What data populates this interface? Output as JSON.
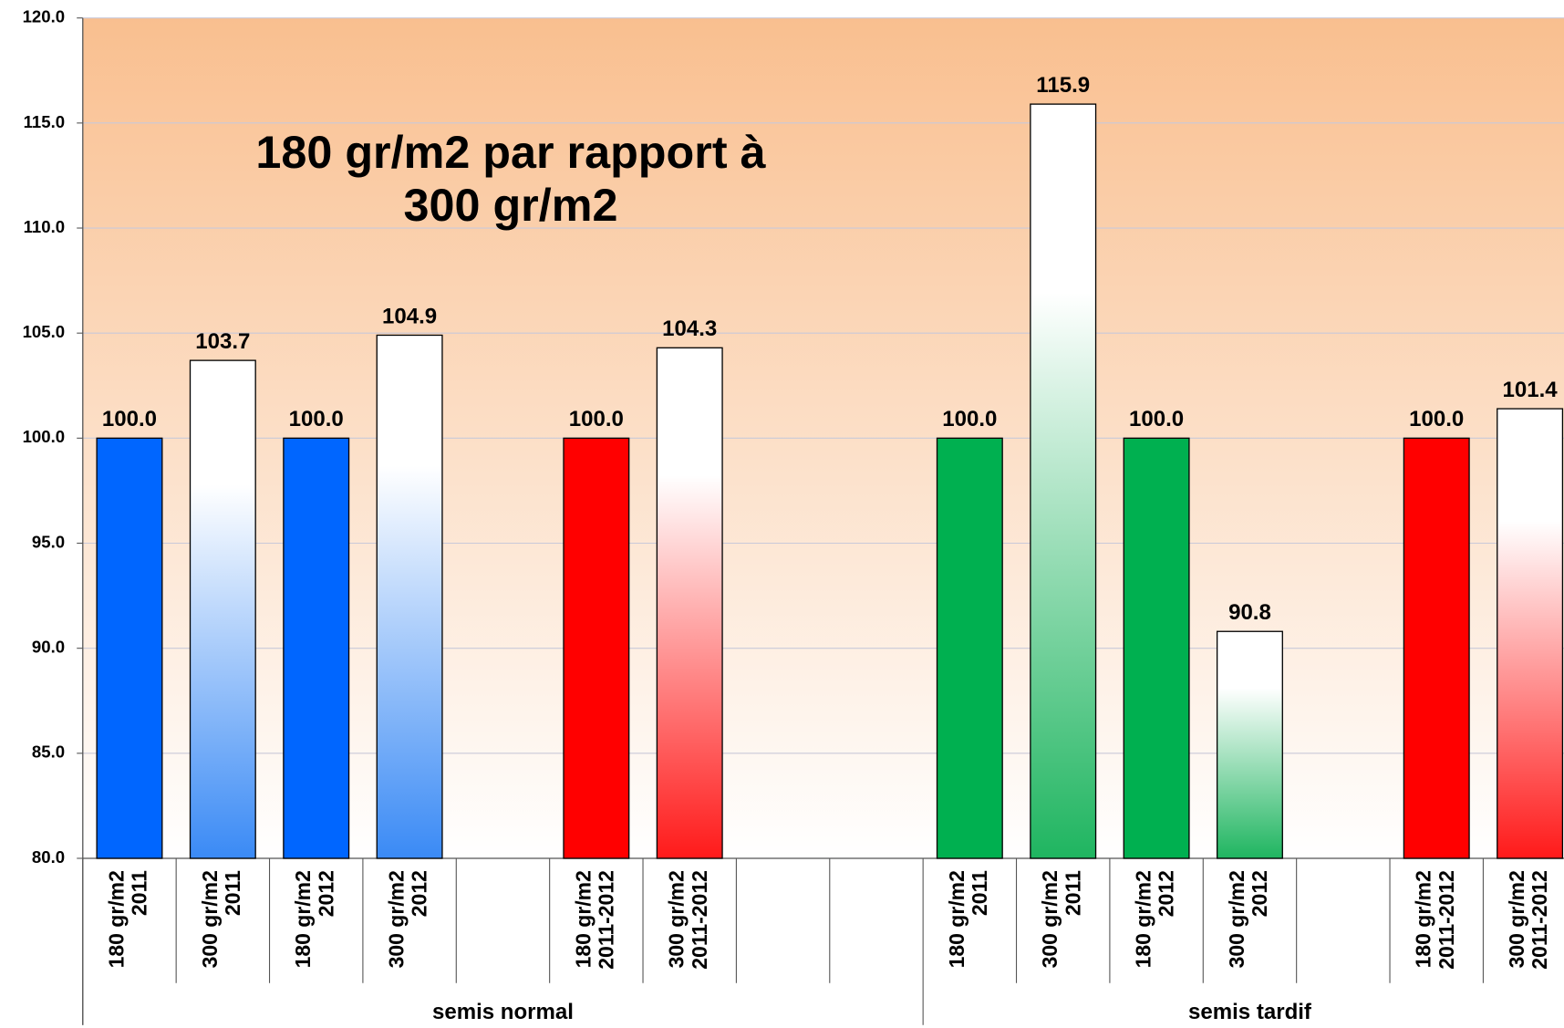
{
  "chart_data": {
    "type": "bar",
    "title": [
      "180 gr/m2 par rapport à",
      "300 gr/m2"
    ],
    "ylim": [
      80,
      120
    ],
    "yticks": [
      {
        "value": 80,
        "label": "80.0"
      },
      {
        "value": 85,
        "label": "85.0"
      },
      {
        "value": 90,
        "label": "90.0"
      },
      {
        "value": 95,
        "label": "95.0"
      },
      {
        "value": 100,
        "label": "100.0"
      },
      {
        "value": 105,
        "label": "105.0"
      },
      {
        "value": 110,
        "label": "110.0"
      },
      {
        "value": 115,
        "label": "115.0"
      },
      {
        "value": 120,
        "label": "120.0"
      }
    ],
    "grid": true,
    "groups": [
      {
        "name": "semis normal",
        "categories": [
          [
            "180 gr/m2",
            "2011"
          ],
          [
            "300 gr/m2",
            "2011"
          ],
          [
            "180 gr/m2",
            "2012"
          ],
          [
            "300 gr/m2",
            "2012"
          ],
          null,
          [
            "180 gr/m2",
            "2011-2012"
          ],
          [
            "300 gr/m2",
            "2011-2012"
          ],
          null,
          null
        ],
        "values": [
          100,
          103.7,
          100,
          104.9,
          null,
          100,
          104.3,
          null,
          null
        ],
        "value_labels": [
          "100.0",
          "103.7",
          "100.0",
          "104.9",
          null,
          "100.0",
          "104.3",
          null,
          null
        ],
        "colors": [
          "#0066ff",
          "#3a8af5",
          "#0066ff",
          "#3a8af5",
          null,
          "#ff0000",
          "#ff1a1a",
          null,
          null
        ],
        "styles": [
          "solid",
          "gradient",
          "solid",
          "gradient",
          null,
          "solid",
          "gradient",
          null,
          null
        ]
      },
      {
        "name": "semis tardif",
        "categories": [
          [
            "180 gr/m2",
            "2011"
          ],
          [
            "300 gr/m2",
            "2011"
          ],
          [
            "180 gr/m2",
            "2012"
          ],
          [
            "300 gr/m2",
            "2012"
          ],
          null,
          [
            "180 gr/m2",
            "2011-2012"
          ],
          [
            "300 gr/m2",
            "2011-2012"
          ]
        ],
        "values": [
          100,
          115.9,
          100,
          90.8,
          null,
          100,
          101.4
        ],
        "value_labels": [
          "100.0",
          "115.9",
          "100.0",
          "90.8",
          null,
          "100.0",
          "101.4"
        ],
        "colors": [
          "#00b050",
          "#1fb560",
          "#00b050",
          "#1fb560",
          null,
          "#ff0000",
          "#ff1a1a"
        ],
        "styles": [
          "solid",
          "gradient",
          "solid",
          "gradient",
          null,
          "solid",
          "gradient"
        ]
      }
    ]
  }
}
